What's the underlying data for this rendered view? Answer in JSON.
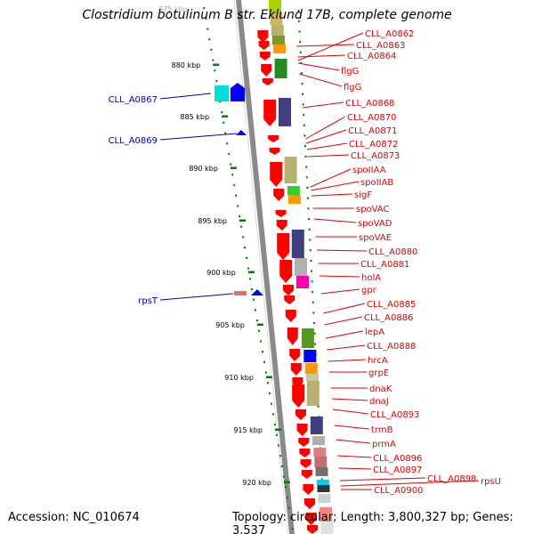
{
  "title": "Clostridium botulinum B str. Eklund 17B, complete genome",
  "top_scale_label": "875 kbp",
  "accession": "Accession: NC_010674",
  "topology": "Topology: circular; Length: 3,800,327 bp; Genes: 3,537",
  "scale": {
    "labels": [
      "880 kbp",
      "885 kbp",
      "890 kbp",
      "895 kbp",
      "900 kbp",
      "905 kbp",
      "910 kbp",
      "915 kbp",
      "920 kbp"
    ]
  },
  "left_genes": [
    {
      "name": "CLL_A0867",
      "color": "#0000aa"
    },
    {
      "name": "CLL_A0869",
      "color": "#0000aa"
    },
    {
      "name": "rpsT",
      "color": "#0000aa"
    }
  ],
  "right_genes": [
    "CLL_A0862",
    "CLL_A0863",
    "CLL_A0864",
    "flgG",
    "flgG",
    "CLL_A0868",
    "CLL_A0870",
    "CLL_A0871",
    "CLL_A0872",
    "CLL_A0873",
    "spoIIAA",
    "spoIIAB",
    "sigF",
    "spoVAC",
    "spoVAD",
    "spoVAE",
    "CLL_A0880",
    "CLL_A0881",
    "holA",
    "gpr",
    "CLL_A0885",
    "CLL_A0886",
    "lepA",
    "CLL_A0888",
    "hrcA",
    "grpE",
    "dnaK",
    "dnaJ",
    "CLL_A0893",
    "trmB",
    "prmA",
    "CLL_A0896",
    "CLL_A0897",
    "CLL_A0898",
    "rpsU",
    "CLL_A0900"
  ],
  "colors": {
    "forward": "#ff0000",
    "reverse": "#0000ff",
    "label_right": "#dd0000",
    "label_left": "#0000aa",
    "axis": "#808080",
    "tick": "#008000"
  }
}
